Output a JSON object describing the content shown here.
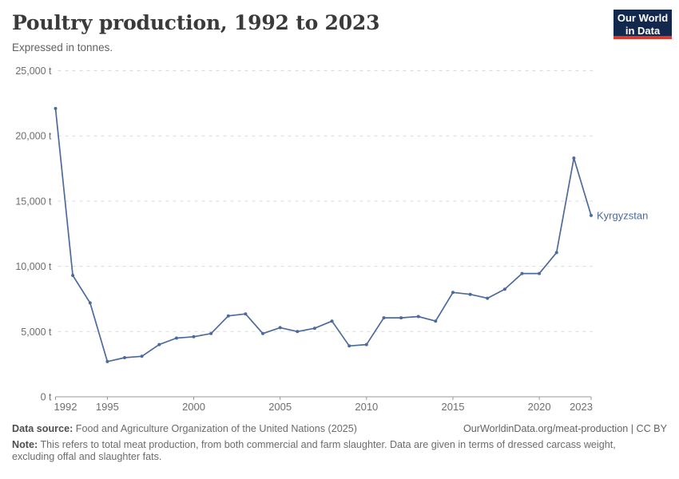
{
  "header": {
    "title": "Poultry production, 1992 to 2023",
    "subtitle": "Expressed in tonnes."
  },
  "logo": {
    "line1": "Our World",
    "line2": "in Data",
    "bg_color": "#12294d",
    "accent_color": "#e0382e"
  },
  "chart_data": {
    "type": "line",
    "title": "Poultry production, 1992 to 2023",
    "ylabel": "tonnes",
    "xlabel": "",
    "x": [
      1992,
      1993,
      1994,
      1995,
      1996,
      1997,
      1998,
      1999,
      2000,
      2001,
      2002,
      2003,
      2004,
      2005,
      2006,
      2007,
      2008,
      2009,
      2010,
      2011,
      2012,
      2013,
      2014,
      2015,
      2016,
      2017,
      2018,
      2019,
      2020,
      2021,
      2022,
      2023
    ],
    "series": [
      {
        "name": "Kyrgyzstan",
        "color": "#4C6A9C",
        "values": [
          22100,
          9300,
          7200,
          2700,
          3000,
          3100,
          4000,
          4500,
          4600,
          4850,
          6200,
          6350,
          4850,
          5300,
          5000,
          5250,
          5800,
          3900,
          4000,
          6050,
          6050,
          6150,
          5800,
          8000,
          7850,
          7550,
          8250,
          9450,
          9450,
          11050,
          18300,
          13900
        ]
      }
    ],
    "xlim": [
      1992,
      2023
    ],
    "ylim": [
      0,
      25000
    ],
    "x_ticks": [
      1992,
      1995,
      2000,
      2005,
      2010,
      2015,
      2020,
      2023
    ],
    "y_ticks": [
      {
        "value": 0,
        "label": "0 t"
      },
      {
        "value": 5000,
        "label": "5,000 t"
      },
      {
        "value": 10000,
        "label": "10,000 t"
      },
      {
        "value": 15000,
        "label": "15,000 t"
      },
      {
        "value": 20000,
        "label": "20,000 t"
      },
      {
        "value": 25000,
        "label": "25,000 t"
      }
    ],
    "grid": "horizontal-dashed",
    "legend_position": "end-of-line",
    "end_label": "Kyrgyzstan"
  },
  "footer": {
    "data_source_label": "Data source:",
    "data_source": "Food and Agriculture Organization of the United Nations (2025)",
    "link": "OurWorldinData.org/meat-production | CC BY",
    "note_label": "Note:",
    "note": "This refers to total meat production, from both commercial and farm slaughter. Data are given in terms of dressed carcass weight, excluding offal and slaughter fats."
  }
}
